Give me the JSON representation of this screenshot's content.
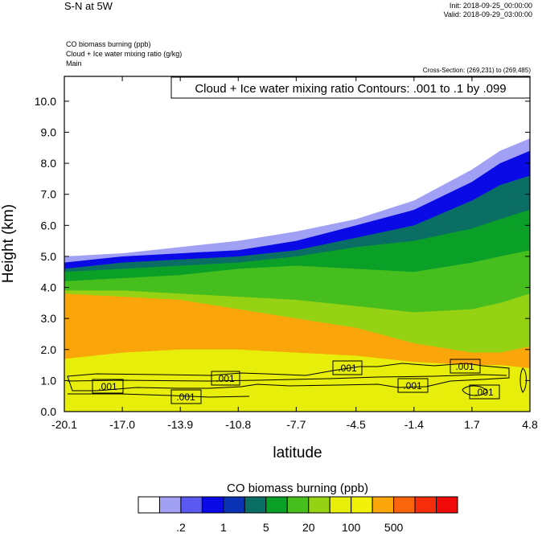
{
  "header": {
    "title": "S-N at 5W",
    "init": "Init: 2018-09-25_00:00:00",
    "valid": "Valid: 2018-09-29_03:00:00",
    "fields": [
      "CO biomass burning   (ppb)",
      "Cloud + Ice water mixing ratio   (g/kg)",
      "Main"
    ],
    "cross_section": "Cross-Section: (269,231) to (269,485)"
  },
  "contour_note": "Cloud + Ice water mixing ratio Contours: .001 to .1 by .099",
  "contour_labels": [
    ".001",
    ".001",
    ".001",
    ".001",
    ".001",
    ".001",
    ".001",
    ".001"
  ],
  "colorbar": {
    "title": "CO biomass burning  (ppb)",
    "colors": [
      "#ffffff",
      "#a0a0f5",
      "#5a5af0",
      "#0a0ae6",
      "#0a32b4",
      "#0a6e64",
      "#0aa028",
      "#46be1e",
      "#96d214",
      "#e6ee0a",
      "#f0f00a",
      "#faa50a",
      "#fa640a",
      "#f52d0a",
      "#f00a0a"
    ],
    "tick_labels": [
      ".2",
      "1",
      "5",
      "20",
      "100",
      "500"
    ]
  },
  "chart_data": {
    "type": "heatmap",
    "title": "",
    "xlabel": "latitude",
    "ylabel": "Height (km)",
    "x_ticks": [
      "-20.1",
      "-17.0",
      "-13.9",
      "-10.8",
      "-7.7",
      "-4.5",
      "-1.4",
      "1.7",
      "4.8"
    ],
    "y_ticks": [
      "0.0",
      "1.0",
      "2.0",
      "3.0",
      "4.0",
      "5.0",
      "6.0",
      "7.0",
      "8.0",
      "9.0",
      "10.0"
    ],
    "xlim": [
      -20.1,
      4.8
    ],
    "ylim": [
      0.0,
      10.8
    ],
    "bands": [
      {
        "name": "white",
        "color": "#ffffff",
        "top_y": [
          5.1,
          5.2,
          5.4,
          5.6,
          5.9,
          6.3,
          7.0,
          8.1,
          8.6,
          9.0
        ]
      },
      {
        "name": "light-purple",
        "color": "#a0a0f5",
        "top_y": [
          5.0,
          5.1,
          5.3,
          5.5,
          5.8,
          6.2,
          6.8,
          7.8,
          8.4,
          8.8
        ]
      },
      {
        "name": "blue",
        "color": "#0a0ae6",
        "top_y": [
          4.8,
          5.0,
          5.1,
          5.2,
          5.5,
          6.0,
          6.5,
          7.4,
          8.0,
          8.4
        ]
      },
      {
        "name": "teal",
        "color": "#0a6e64",
        "top_y": [
          4.6,
          4.8,
          4.9,
          5.0,
          5.2,
          5.6,
          6.0,
          6.8,
          7.3,
          7.6
        ]
      },
      {
        "name": "green",
        "color": "#0aa028",
        "top_y": [
          4.5,
          4.6,
          4.7,
          4.8,
          5.0,
          5.3,
          5.5,
          5.9,
          6.2,
          6.5
        ]
      },
      {
        "name": "light-green",
        "color": "#46be1e",
        "top_y": [
          4.2,
          4.3,
          4.4,
          4.6,
          4.7,
          4.6,
          4.5,
          4.8,
          5.0,
          5.2
        ]
      },
      {
        "name": "yellow-green",
        "color": "#96d214",
        "top_y": [
          3.9,
          3.9,
          3.8,
          3.7,
          3.6,
          3.4,
          3.2,
          3.3,
          3.5,
          3.8
        ]
      },
      {
        "name": "orange",
        "color": "#faa50a",
        "top_y": [
          3.8,
          3.7,
          3.6,
          3.3,
          3.0,
          2.7,
          2.2,
          1.9,
          1.9,
          2.1
        ]
      },
      {
        "name": "orange-bottom",
        "color": "#e6ee0a",
        "top_y": [
          1.7,
          1.9,
          2.0,
          2.0,
          1.9,
          1.8,
          1.6,
          1.5,
          1.5,
          1.4
        ]
      }
    ],
    "band_x": [
      -20.1,
      -17.0,
      -13.9,
      -10.8,
      -7.7,
      -4.5,
      -1.4,
      1.7,
      3.2,
      4.8
    ]
  }
}
